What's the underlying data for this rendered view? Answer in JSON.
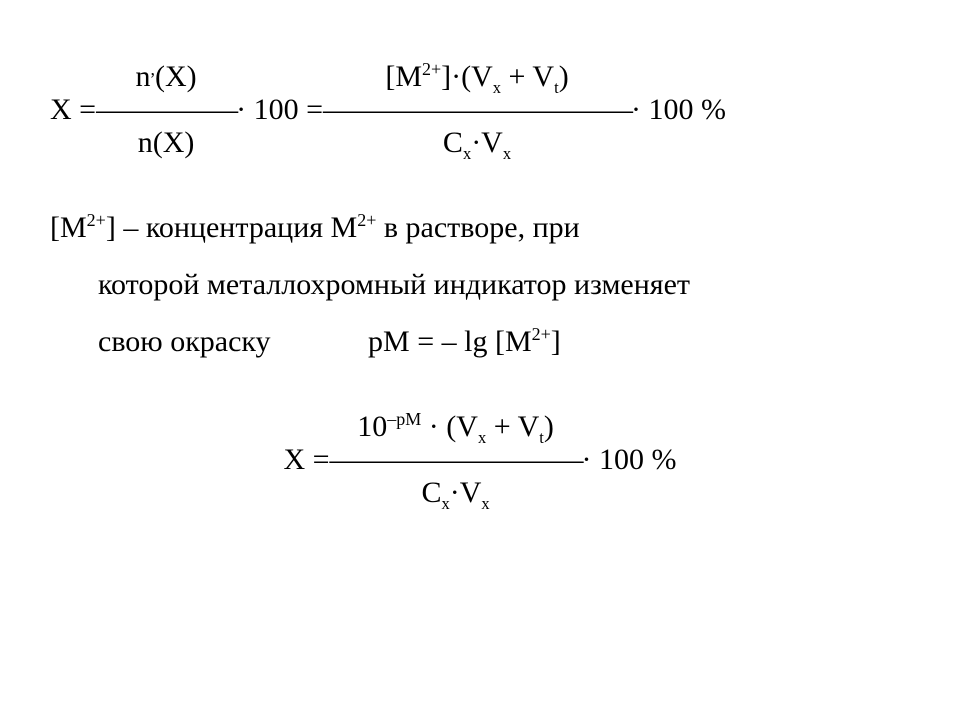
{
  "colors": {
    "text": "#000000",
    "background": "#ffffff"
  },
  "typography": {
    "font_family": "Times New Roman",
    "base_size_pt": 22
  },
  "eq1": {
    "lhs": "X = ",
    "frac1_num_html": "n<sup>,</sup>(X)",
    "frac1_den_html": "n(X)",
    "frac1_line": "—————",
    "mid1": " · 100 = ",
    "frac2_num_html": "[M<sup>2+</sup>]·(V<sub>x</sub> + V<sub>t</sub>)",
    "frac2_den_html": "C<sub>x</sub>·V<sub>x</sub>",
    "frac2_line": "———————————",
    "tail": " · 100 %"
  },
  "text": {
    "line1_html": "[M<sup>2+</sup>] – концентрация M<sup>2+</sup> в растворе, при",
    "line2": "которой металлохромный индикатор изменяет",
    "line3a": "свою окраску",
    "line3b_html": "pM = – lg [M<sup>2+</sup>]"
  },
  "eq2": {
    "lhs": "X = ",
    "num_html": "10<sup>–pM</sup> · (V<sub>x</sub> + V<sub>t</sub>)",
    "den_html": "C<sub>x</sub>·V<sub>x</sub>",
    "line": "—————————",
    "tail": " · 100 %"
  }
}
